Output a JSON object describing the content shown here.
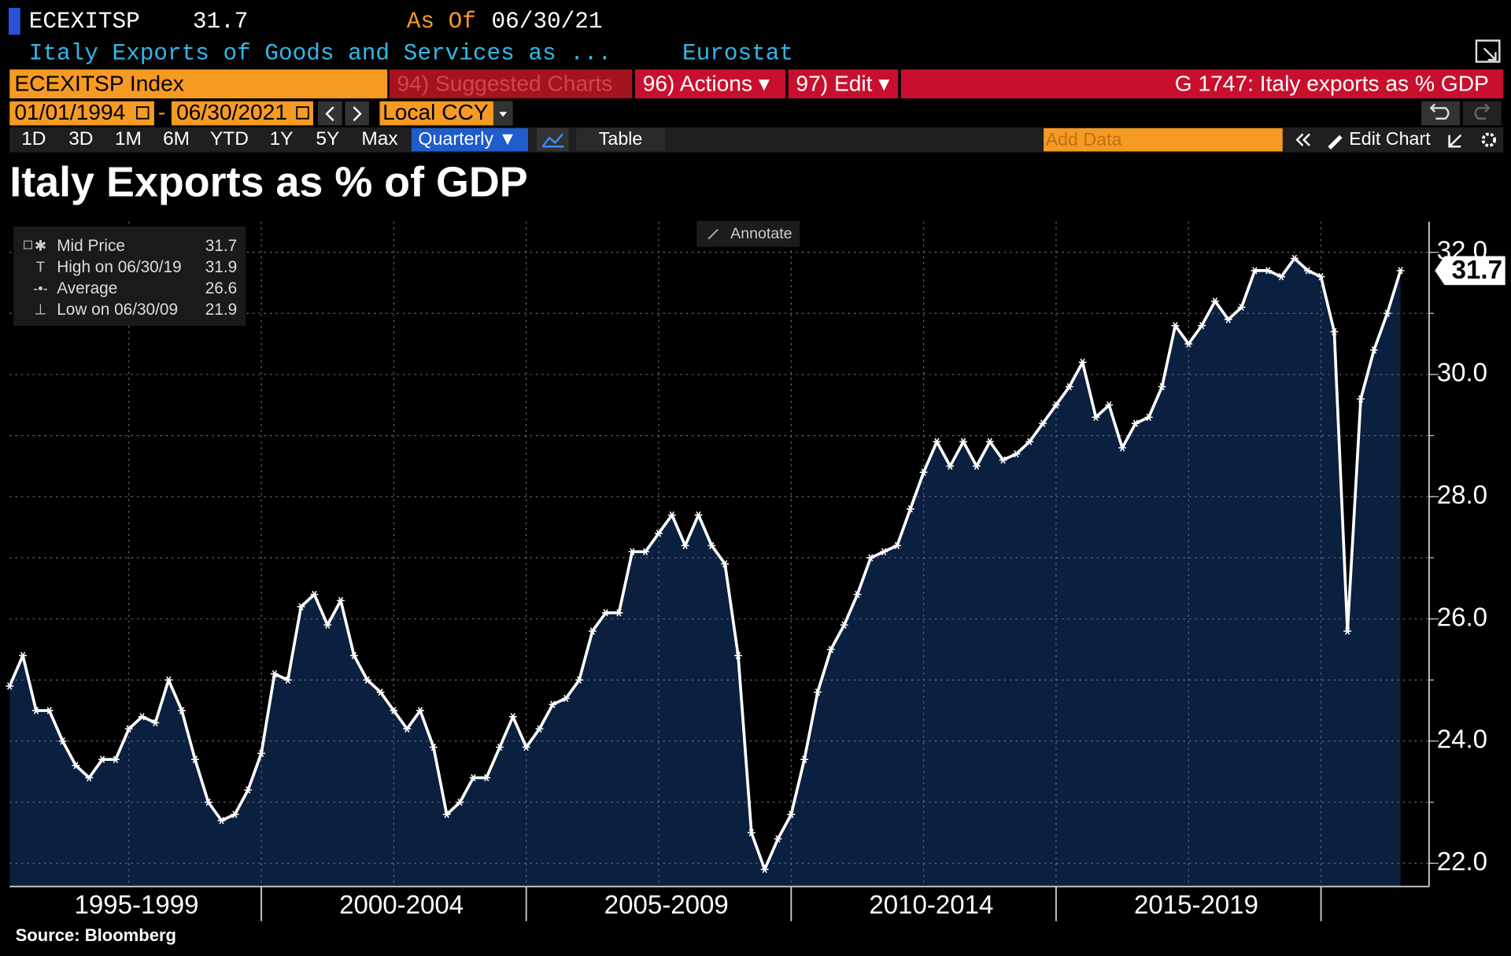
{
  "header": {
    "ticker": "ECEXITSP",
    "last": 31.7,
    "as_of_label": "As Of",
    "as_of_date": "06/30/21",
    "description": "Italy Exports of Goods and Services as ...",
    "source": "Eurostat"
  },
  "toolbar": {
    "security": "ECEXITSP Index",
    "suggested": "94) Suggested Charts",
    "actions": "96) Actions ▾",
    "edit": "97) Edit ▾",
    "chart_name": "G 1747: Italy exports as % GDP",
    "start_date": "01/01/1994",
    "end_date": "06/30/2021",
    "currency": "Local CCY",
    "ranges": [
      "1D",
      "3D",
      "1M",
      "6M",
      "YTD",
      "1Y",
      "5Y",
      "Max"
    ],
    "frequency": "Quarterly ▼",
    "table": "Table",
    "add_data": "Add Data",
    "edit_chart": "Edit Chart",
    "annotate": "Annotate"
  },
  "footer": {
    "source": "Source: Bloomberg"
  },
  "chart_data": {
    "type": "line",
    "title": "Italy Exports as % of GDP",
    "x": [
      1995.25,
      1995.5,
      1995.75,
      1996,
      1996.25,
      1996.5,
      1996.75,
      1997,
      1997.25,
      1997.5,
      1997.75,
      1998,
      1998.25,
      1998.5,
      1998.75,
      1999,
      1999.25,
      1999.5,
      1999.75,
      2000,
      2000.25,
      2000.5,
      2000.75,
      2001,
      2001.25,
      2001.5,
      2001.75,
      2002,
      2002.25,
      2002.5,
      2002.75,
      2003,
      2003.25,
      2003.5,
      2003.75,
      2004,
      2004.25,
      2004.5,
      2004.75,
      2005,
      2005.25,
      2005.5,
      2005.75,
      2006,
      2006.25,
      2006.5,
      2006.75,
      2007,
      2007.25,
      2007.5,
      2007.75,
      2008,
      2008.25,
      2008.5,
      2008.75,
      2009,
      2009.25,
      2009.5,
      2009.75,
      2010,
      2010.25,
      2010.5,
      2010.75,
      2011,
      2011.25,
      2011.5,
      2011.75,
      2012,
      2012.25,
      2012.5,
      2012.75,
      2013,
      2013.25,
      2013.5,
      2013.75,
      2014,
      2014.25,
      2014.5,
      2014.75,
      2015,
      2015.25,
      2015.5,
      2015.75,
      2016,
      2016.25,
      2016.5,
      2016.75,
      2017,
      2017.25,
      2017.5,
      2017.75,
      2018,
      2018.25,
      2018.5,
      2018.75,
      2019,
      2019.25,
      2019.5,
      2019.75,
      2020,
      2020.25,
      2020.5,
      2020.75,
      2021,
      2021.25,
      2021.5
    ],
    "series": [
      {
        "name": "Mid Price",
        "color": "#ffffff",
        "fill": "#0b1f3f",
        "values": [
          24.9,
          25.4,
          24.5,
          24.5,
          24.0,
          23.6,
          23.4,
          23.7,
          23.7,
          24.2,
          24.4,
          24.3,
          25.0,
          24.5,
          23.7,
          23.0,
          22.7,
          22.8,
          23.2,
          23.8,
          25.1,
          25.0,
          26.2,
          26.4,
          25.9,
          26.3,
          25.4,
          25.0,
          24.8,
          24.5,
          24.2,
          24.5,
          23.9,
          22.8,
          23.0,
          23.4,
          23.4,
          23.9,
          24.4,
          23.9,
          24.2,
          24.6,
          24.7,
          25.0,
          25.8,
          26.1,
          26.1,
          27.1,
          27.1,
          27.4,
          27.7,
          27.2,
          27.7,
          27.2,
          26.9,
          25.4,
          22.5,
          21.9,
          22.4,
          22.8,
          23.7,
          24.8,
          25.5,
          25.9,
          26.4,
          27.0,
          27.1,
          27.2,
          27.8,
          28.4,
          28.9,
          28.5,
          28.9,
          28.5,
          28.9,
          28.6,
          28.7,
          28.9,
          29.2,
          29.5,
          29.8,
          30.2,
          29.3,
          29.5,
          28.8,
          29.2,
          29.3,
          29.8,
          30.8,
          30.5,
          30.8,
          31.2,
          30.9,
          31.1,
          31.7,
          31.7,
          31.6,
          31.9,
          31.7,
          31.6,
          30.7,
          25.8,
          29.6,
          30.4,
          31.0,
          31.7
        ]
      }
    ],
    "legend": [
      {
        "label": "Mid Price",
        "value": 31.7
      },
      {
        "label": "High on 06/30/19",
        "value": 31.9
      },
      {
        "label": "Average",
        "value": 26.6
      },
      {
        "label": "Low on 06/30/09",
        "value": 21.9
      }
    ],
    "xlim": [
      1995.25,
      2022.04
    ],
    "xticks": [
      1995,
      2000,
      2005,
      2010,
      2015,
      2020
    ],
    "x_period_labels": [
      "1995-1999",
      "2000-2004",
      "2005-2009",
      "2010-2014",
      "2015-2019"
    ],
    "x_grid": [
      1997.5,
      2000,
      2002.5,
      2005,
      2007.5,
      2010,
      2012.5,
      2015,
      2017.5,
      2020
    ],
    "ylim": [
      21.62,
      32.5
    ],
    "yticks": [
      {
        "value": 22,
        "label": "22.0"
      },
      {
        "value": 24,
        "label": "24.0"
      },
      {
        "value": 26,
        "label": "26.0"
      },
      {
        "value": 28,
        "label": "28.0"
      },
      {
        "value": 30,
        "label": "30.0"
      },
      {
        "value": 32,
        "label": "32.0"
      }
    ],
    "y_grid": [
      22,
      23,
      24,
      25,
      26,
      27,
      28,
      29,
      30,
      31,
      32
    ],
    "y_axis_side": "right",
    "grid": true,
    "legend_position": "upper left"
  }
}
